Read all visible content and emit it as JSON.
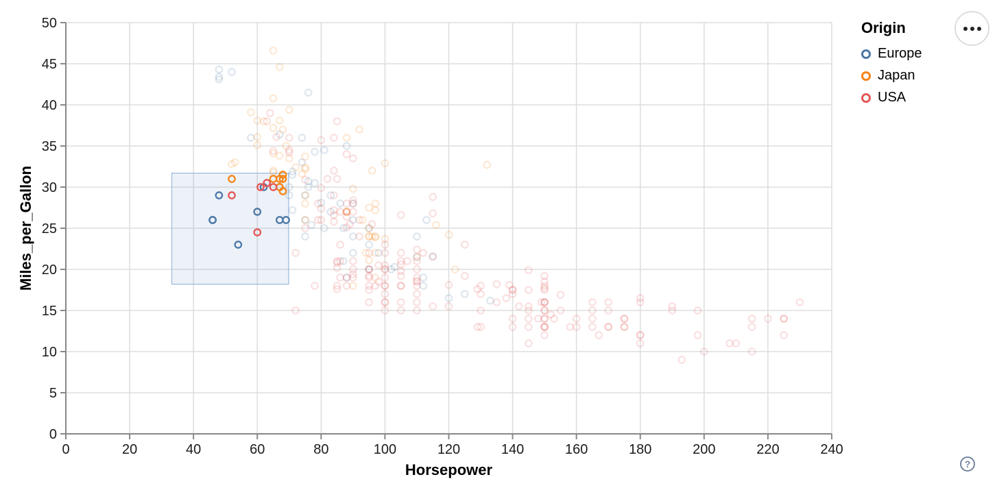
{
  "app": {
    "help_label": "?",
    "icons": {
      "more_options": "ellipsis-icon",
      "help": "question-mark-icon"
    }
  },
  "legend": {
    "title": "Origin",
    "items": [
      {
        "label": "Europe",
        "color": "#4c78a8"
      },
      {
        "label": "Japan",
        "color": "#f58518"
      },
      {
        "label": "USA",
        "color": "#e45756"
      }
    ]
  },
  "chart_data": {
    "type": "scatter",
    "title": "",
    "xlabel": "Horsepower",
    "ylabel": "Miles_per_Gallon",
    "xlim": [
      0,
      240
    ],
    "ylim": [
      0,
      50
    ],
    "x_ticks": [
      0,
      20,
      40,
      60,
      80,
      100,
      120,
      140,
      160,
      180,
      200,
      220,
      240
    ],
    "y_ticks": [
      0,
      5,
      10,
      15,
      20,
      25,
      30,
      35,
      40,
      45,
      50
    ],
    "grid": true,
    "legend_position": "top-right",
    "unselected_opacity": 0.18,
    "brush_selection": {
      "x": [
        33.2,
        69.8
      ],
      "y": [
        18.2,
        31.7
      ],
      "fill": "#6b93c8",
      "stroke": "#8fb0d9"
    },
    "colors": {
      "grid": "#dedede",
      "axis": "#888888",
      "label": "#1b1b1b"
    },
    "series": [
      {
        "name": "Europe",
        "color": "#4c78a8",
        "points": [
          [
            46,
            26
          ],
          [
            46,
            26
          ],
          [
            87,
            25
          ],
          [
            90,
            24
          ],
          [
            95,
            25
          ],
          [
            113,
            26
          ],
          [
            90,
            28
          ],
          [
            70,
            30
          ],
          [
            76,
            30
          ],
          [
            60,
            27
          ],
          [
            54,
            23
          ],
          [
            112,
            18
          ],
          [
            87,
            21
          ],
          [
            69,
            26
          ],
          [
            90,
            26
          ],
          [
            75,
            29
          ],
          [
            95,
            23
          ],
          [
            112,
            19
          ],
          [
            110,
            24
          ],
          [
            90,
            22
          ],
          [
            75,
            24
          ],
          [
            67,
            26
          ],
          [
            48,
            29
          ],
          [
            62,
            30
          ],
          [
            67,
            30
          ],
          [
            48,
            43.1
          ],
          [
            48,
            43.4
          ],
          [
            48,
            44.3
          ],
          [
            52,
            44
          ],
          [
            71,
            31.9
          ],
          [
            71,
            31.5
          ],
          [
            74,
            33
          ],
          [
            74,
            36
          ],
          [
            83,
            29
          ],
          [
            103,
            20.3
          ],
          [
            78,
            34.3
          ],
          [
            67,
            36.4
          ],
          [
            110,
            21.5
          ],
          [
            133,
            16.2
          ],
          [
            80,
            28.1
          ],
          [
            58,
            36
          ],
          [
            83,
            27
          ],
          [
            81,
            34.5
          ],
          [
            86,
            28
          ],
          [
            115,
            21.6
          ],
          [
            98,
            22
          ],
          [
            102,
            20
          ],
          [
            125,
            17
          ],
          [
            76,
            30.7
          ],
          [
            120,
            16.5
          ],
          [
            77,
            25.4
          ],
          [
            88,
            35
          ],
          [
            70,
            29
          ],
          [
            95,
            20
          ],
          [
            78,
            30.5
          ],
          [
            75,
            26
          ],
          [
            81,
            25
          ],
          [
            71,
            27.2
          ],
          [
            88,
            19
          ],
          [
            76,
            41.5
          ]
        ]
      },
      {
        "name": "Japan",
        "color": "#f58518",
        "points": [
          [
            95,
            24
          ],
          [
            88,
            27
          ],
          [
            88,
            27
          ],
          [
            95,
            25
          ],
          [
            65,
            31
          ],
          [
            69,
            35
          ],
          [
            95,
            24
          ],
          [
            88,
            27
          ],
          [
            97,
            19
          ],
          [
            94,
            22
          ],
          [
            90,
            18
          ],
          [
            122,
            20
          ],
          [
            67,
            31
          ],
          [
            65,
            32
          ],
          [
            53,
            33
          ],
          [
            75,
            28
          ],
          [
            96,
            24
          ],
          [
            75,
            29
          ],
          [
            97,
            24
          ],
          [
            93,
            26
          ],
          [
            97,
            28
          ],
          [
            95,
            21.1
          ],
          [
            70,
            33.5
          ],
          [
            68,
            31.5
          ],
          [
            52,
            32.8
          ],
          [
            70,
            39.4
          ],
          [
            60,
            36.1
          ],
          [
            97,
            22
          ],
          [
            96,
            32
          ],
          [
            97,
            27.2
          ],
          [
            95,
            27.5
          ],
          [
            65,
            31.8
          ],
          [
            65,
            40.8
          ],
          [
            60,
            38.1
          ],
          [
            65,
            37.2
          ],
          [
            60,
            35.1
          ],
          [
            67,
            30
          ],
          [
            67,
            33.8
          ],
          [
            92,
            37
          ],
          [
            75,
            32.2
          ],
          [
            75,
            32.4
          ],
          [
            72,
            32.4
          ],
          [
            74,
            31.6
          ],
          [
            132,
            32.7
          ],
          [
            100,
            23.7
          ],
          [
            67,
            44.6
          ],
          [
            65,
            46.6
          ],
          [
            58,
            39.1
          ],
          [
            75,
            33.7
          ],
          [
            62,
            38
          ],
          [
            68,
            37
          ],
          [
            68,
            31
          ],
          [
            88,
            36
          ],
          [
            116,
            25.4
          ],
          [
            120,
            24.2
          ],
          [
            97,
            23.9
          ],
          [
            90,
            29.8
          ],
          [
            110,
            21.5
          ],
          [
            75,
            26
          ],
          [
            100,
            32.9
          ],
          [
            68,
            29.5
          ],
          [
            52,
            31
          ],
          [
            67,
            38.1
          ],
          [
            65,
            34.1
          ]
        ]
      },
      {
        "name": "USA",
        "color": "#e45756",
        "points": [
          [
            130,
            18
          ],
          [
            165,
            15
          ],
          [
            150,
            18
          ],
          [
            150,
            16
          ],
          [
            140,
            17
          ],
          [
            198,
            15
          ],
          [
            220,
            14
          ],
          [
            215,
            14
          ],
          [
            225,
            14
          ],
          [
            190,
            15
          ],
          [
            170,
            15
          ],
          [
            160,
            14
          ],
          [
            150,
            15
          ],
          [
            225,
            14
          ],
          [
            215,
            10
          ],
          [
            200,
            10
          ],
          [
            210,
            11
          ],
          [
            193,
            9
          ],
          [
            95,
            22
          ],
          [
            97,
            18
          ],
          [
            85,
            21
          ],
          [
            90,
            21
          ],
          [
            90,
            28
          ],
          [
            88,
            19
          ],
          [
            100,
            18
          ],
          [
            105,
            16
          ],
          [
            100,
            17
          ],
          [
            100,
            19
          ],
          [
            88,
            18
          ],
          [
            86,
            23
          ],
          [
            72,
            22
          ],
          [
            90,
            20
          ],
          [
            86,
            21
          ],
          [
            165,
            14
          ],
          [
            175,
            14
          ],
          [
            153,
            14
          ],
          [
            150,
            14
          ],
          [
            180,
            12
          ],
          [
            170,
            13
          ],
          [
            175,
            13
          ],
          [
            110,
            18
          ],
          [
            165,
            13
          ],
          [
            175,
            14
          ],
          [
            208,
            11
          ],
          [
            158,
            13
          ],
          [
            150,
            14
          ],
          [
            140,
            13
          ],
          [
            145,
            11
          ],
          [
            167,
            12
          ],
          [
            170,
            13
          ],
          [
            230,
            16
          ],
          [
            150,
            15
          ],
          [
            150,
            13
          ],
          [
            198,
            12
          ],
          [
            225,
            12
          ],
          [
            215,
            13
          ],
          [
            175,
            13
          ],
          [
            180,
            12
          ],
          [
            95,
            20
          ],
          [
            100,
            18
          ],
          [
            85,
            18
          ],
          [
            105,
            18
          ],
          [
            100,
            16
          ],
          [
            95,
            20
          ],
          [
            105,
            15
          ],
          [
            100,
            16
          ],
          [
            75,
            25
          ],
          [
            80,
            26
          ],
          [
            100,
            20
          ],
          [
            180,
            11
          ],
          [
            95,
            19
          ],
          [
            105,
            18
          ],
          [
            72,
            15
          ],
          [
            90,
            19
          ],
          [
            110,
            20
          ],
          [
            129,
            13
          ],
          [
            170,
            16
          ],
          [
            145,
            15
          ],
          [
            150,
            16
          ],
          [
            148,
            14
          ],
          [
            52,
            29
          ],
          [
            100,
            20
          ],
          [
            78,
            18
          ],
          [
            110,
            18.5
          ],
          [
            95,
            17.5
          ],
          [
            150,
            13
          ],
          [
            152,
            14.5
          ],
          [
            100,
            22
          ],
          [
            105,
            22
          ],
          [
            150,
            16
          ],
          [
            120,
            15.5
          ],
          [
            140,
            17.5
          ],
          [
            150,
            17.5
          ],
          [
            145,
            17.5
          ],
          [
            180,
            16.5
          ],
          [
            145,
            13
          ],
          [
            130,
            13
          ],
          [
            150,
            13
          ],
          [
            110,
            17
          ],
          [
            180,
            16
          ],
          [
            145,
            15.5
          ],
          [
            190,
            15.5
          ],
          [
            149,
            16
          ],
          [
            89,
            25.5
          ],
          [
            96,
            25.5
          ],
          [
            79,
            26
          ],
          [
            98,
            18.5
          ],
          [
            120,
            18.1
          ],
          [
            105,
            20.6
          ],
          [
            85,
            20.8
          ],
          [
            110,
            18.6
          ],
          [
            85,
            20.2
          ],
          [
            88,
            25.1
          ],
          [
            100,
            20.5
          ],
          [
            90,
            19.4
          ],
          [
            150,
            17.7
          ],
          [
            139,
            18.1
          ],
          [
            140,
            17.5
          ],
          [
            105,
            19.2
          ],
          [
            98,
            20.5
          ],
          [
            95,
            19.2
          ],
          [
            150,
            18.5
          ],
          [
            155,
            16.9
          ],
          [
            142,
            15.5
          ],
          [
            125,
            19.2
          ],
          [
            135,
            18.2
          ],
          [
            129,
            17.6
          ],
          [
            138,
            16.5
          ],
          [
            130,
            17
          ],
          [
            125,
            23
          ],
          [
            115,
            21.5
          ],
          [
            105,
            19.8
          ],
          [
            80,
            27.4
          ],
          [
            70,
            34.2
          ],
          [
            70,
            34.5
          ],
          [
            75,
            30.9
          ],
          [
            90,
            28.4
          ],
          [
            115,
            28.8
          ],
          [
            115,
            26.8
          ],
          [
            90,
            33.5
          ],
          [
            88,
            26.4
          ],
          [
            92,
            24
          ],
          [
            84,
            25.8
          ],
          [
            84,
            27.2
          ],
          [
            84,
            26.6
          ],
          [
            84,
            29
          ],
          [
            84,
            32
          ],
          [
            84,
            36
          ],
          [
            85,
            31
          ],
          [
            82,
            31
          ],
          [
            79,
            28
          ],
          [
            70,
            36
          ],
          [
            65,
            34.4
          ],
          [
            80,
            29.9
          ],
          [
            64,
            39
          ],
          [
            63,
            38
          ],
          [
            63,
            30.5
          ],
          [
            66,
            36.1
          ],
          [
            105,
            26.6
          ],
          [
            85,
            17.6
          ],
          [
            110,
            22.4
          ],
          [
            85,
            38
          ],
          [
            92,
            26
          ],
          [
            112,
            22
          ],
          [
            88,
            28
          ],
          [
            88,
            27
          ],
          [
            88,
            34
          ],
          [
            86,
            27
          ],
          [
            90,
            27
          ],
          [
            60,
            24.5
          ],
          [
            61,
            30
          ],
          [
            65,
            30
          ],
          [
            107,
            21
          ],
          [
            86,
            19
          ],
          [
            95,
            18
          ],
          [
            100,
            15
          ],
          [
            110,
            16
          ],
          [
            110,
            15
          ],
          [
            130,
            15
          ],
          [
            95,
            16
          ],
          [
            105,
            21
          ],
          [
            100,
            23
          ],
          [
            110,
            19
          ],
          [
            110,
            21
          ],
          [
            115,
            15.5
          ],
          [
            135,
            16
          ],
          [
            140,
            14
          ],
          [
            145,
            14
          ],
          [
            150,
            12
          ],
          [
            155,
            15
          ],
          [
            160,
            13
          ],
          [
            165,
            16
          ],
          [
            145,
            19.9
          ],
          [
            150,
            19.2
          ],
          [
            80,
            35.7
          ]
        ]
      }
    ]
  }
}
